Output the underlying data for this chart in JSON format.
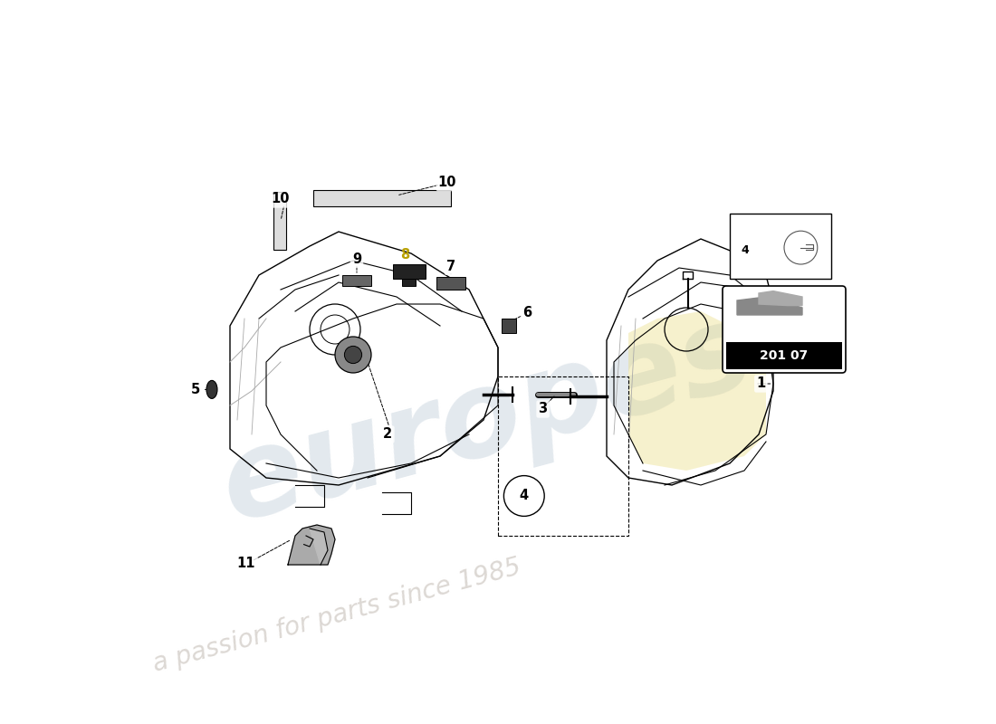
{
  "bg_color": "#ffffff",
  "line_color": "#000000",
  "light_line_color": "#aaaaaa",
  "label_color": "#000000",
  "diagram_number": "201 07",
  "brand_text": "europes",
  "sub_text": "a passion for parts since 1985"
}
